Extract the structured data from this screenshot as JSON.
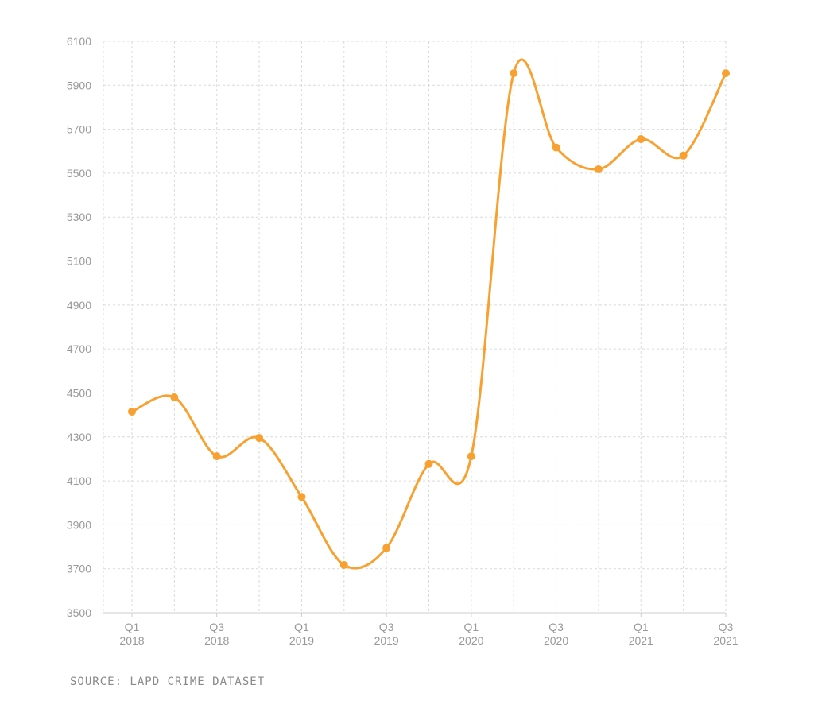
{
  "chart_data": {
    "type": "line",
    "title": "",
    "xlabel": "",
    "ylabel": "",
    "x": [
      "Q1 2018",
      "Q2 2018",
      "Q3 2018",
      "Q4 2018",
      "Q1 2019",
      "Q2 2019",
      "Q3 2019",
      "Q4 2019",
      "Q1 2020",
      "Q2 2020",
      "Q3 2020",
      "Q4 2020",
      "Q1 2021",
      "Q2 2021",
      "Q3 2021"
    ],
    "x_tick_labels": [
      {
        "index": 0,
        "line1": "Q1",
        "line2": "2018"
      },
      {
        "index": 2,
        "line1": "Q3",
        "line2": "2018"
      },
      {
        "index": 4,
        "line1": "Q1",
        "line2": "2019"
      },
      {
        "index": 6,
        "line1": "Q3",
        "line2": "2019"
      },
      {
        "index": 8,
        "line1": "Q1",
        "line2": "2020"
      },
      {
        "index": 10,
        "line1": "Q3",
        "line2": "2020"
      },
      {
        "index": 12,
        "line1": "Q1",
        "line2": "2021"
      },
      {
        "index": 14,
        "line1": "Q3",
        "line2": "2021"
      }
    ],
    "series": [
      {
        "values": [
          4415,
          4480,
          4212,
          4295,
          4027,
          3717,
          3795,
          4177,
          4212,
          5955,
          5617,
          5518,
          5655,
          5580,
          5955
        ]
      }
    ],
    "ylim": [
      3500,
      6100
    ],
    "yticks": [
      3500,
      3700,
      3900,
      4100,
      4300,
      4500,
      4700,
      4900,
      5100,
      5300,
      5500,
      5700,
      5900,
      6100
    ],
    "grid": true,
    "line_color": "#f8a130"
  },
  "source": "SOURCE: LAPD CRIME DATASET"
}
